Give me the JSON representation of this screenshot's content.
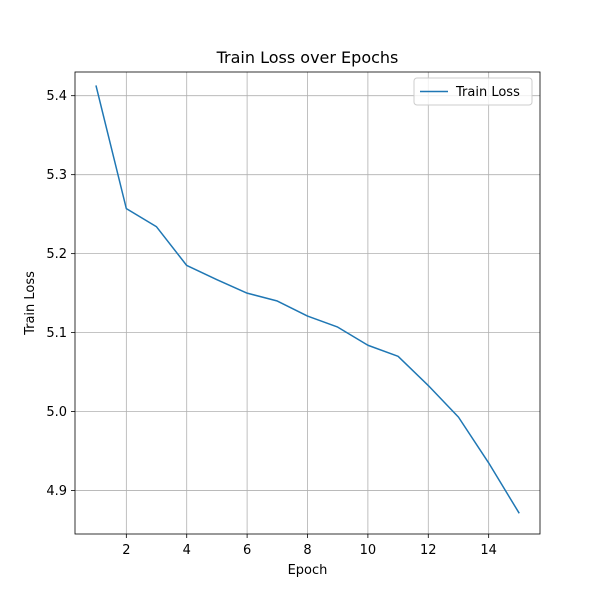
{
  "chart_data": {
    "type": "line",
    "title": "Train Loss over Epochs",
    "xlabel": "Epoch",
    "ylabel": "Train Loss",
    "xlim": [
      0.3,
      15.7
    ],
    "ylim": [
      4.845,
      5.43
    ],
    "xticks": [
      2,
      4,
      6,
      8,
      10,
      12,
      14
    ],
    "yticks": [
      4.9,
      5.0,
      5.1,
      5.2,
      5.3,
      5.4
    ],
    "x_tick_labels": [
      "2",
      "4",
      "6",
      "8",
      "10",
      "12",
      "14"
    ],
    "y_tick_labels": [
      "4.9",
      "5.0",
      "5.1",
      "5.2",
      "5.3",
      "5.4"
    ],
    "grid": true,
    "legend_position": "upper right",
    "series": [
      {
        "name": "Train Loss",
        "color": "#1f77b4",
        "x": [
          1,
          2,
          3,
          4,
          5,
          6,
          7,
          8,
          9,
          10,
          11,
          12,
          13,
          14,
          15
        ],
        "y": [
          5.412,
          5.257,
          5.234,
          5.185,
          5.167,
          5.15,
          5.14,
          5.121,
          5.107,
          5.084,
          5.07,
          5.033,
          4.993,
          4.935,
          4.872
        ]
      }
    ]
  }
}
